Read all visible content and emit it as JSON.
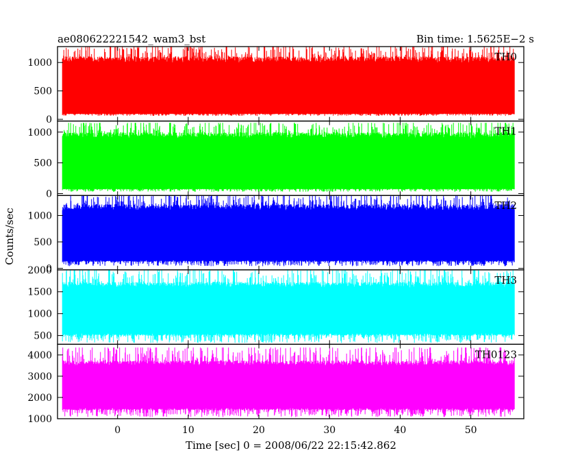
{
  "chart_data": {
    "type": "line",
    "title": "ae080622221542_wam3_bst",
    "subtitle": "Bin time: 1.5625E−2 s",
    "xlabel": "Time [sec] 0 = 2008/06/22 22:15:42.862",
    "ylabel": "Counts/sec",
    "xlim": [
      -8.5,
      57.5
    ],
    "xticks": [
      0,
      10,
      20,
      30,
      40,
      50
    ],
    "data_x_range": [
      -7.8,
      56.2
    ],
    "grid": false,
    "panels": [
      {
        "name": "TH0",
        "color": "#ff0000",
        "ylim": [
          -30,
          1280
        ],
        "yticks": [
          0,
          500,
          1000
        ],
        "fill_range": [
          100,
          1000
        ],
        "spike_max": 1280,
        "dip_min": 60
      },
      {
        "name": "TH1",
        "color": "#00ff00",
        "ylim": [
          -30,
          1180
        ],
        "yticks": [
          0,
          500,
          1000
        ],
        "fill_range": [
          80,
          900
        ],
        "spike_max": 1150,
        "dip_min": 30
      },
      {
        "name": "TH2",
        "color": "#0000ff",
        "ylim": [
          -30,
          1380
        ],
        "yticks": [
          0,
          500,
          1000
        ],
        "fill_range": [
          150,
          1100
        ],
        "spike_max": 1380,
        "dip_min": 40
      },
      {
        "name": "TH3",
        "color": "#00ffff",
        "ylim": [
          300,
          2000
        ],
        "yticks": [
          500,
          1000,
          1500,
          2000
        ],
        "fill_range": [
          550,
          1600
        ],
        "spike_max": 2000,
        "dip_min": 330
      },
      {
        "name": "TH0123",
        "color": "#ff00ff",
        "ylim": [
          1000,
          4500
        ],
        "yticks": [
          1000,
          2000,
          3000,
          4000
        ],
        "fill_range": [
          1500,
          3500
        ],
        "spike_max": 4350,
        "dip_min": 1080
      }
    ]
  }
}
